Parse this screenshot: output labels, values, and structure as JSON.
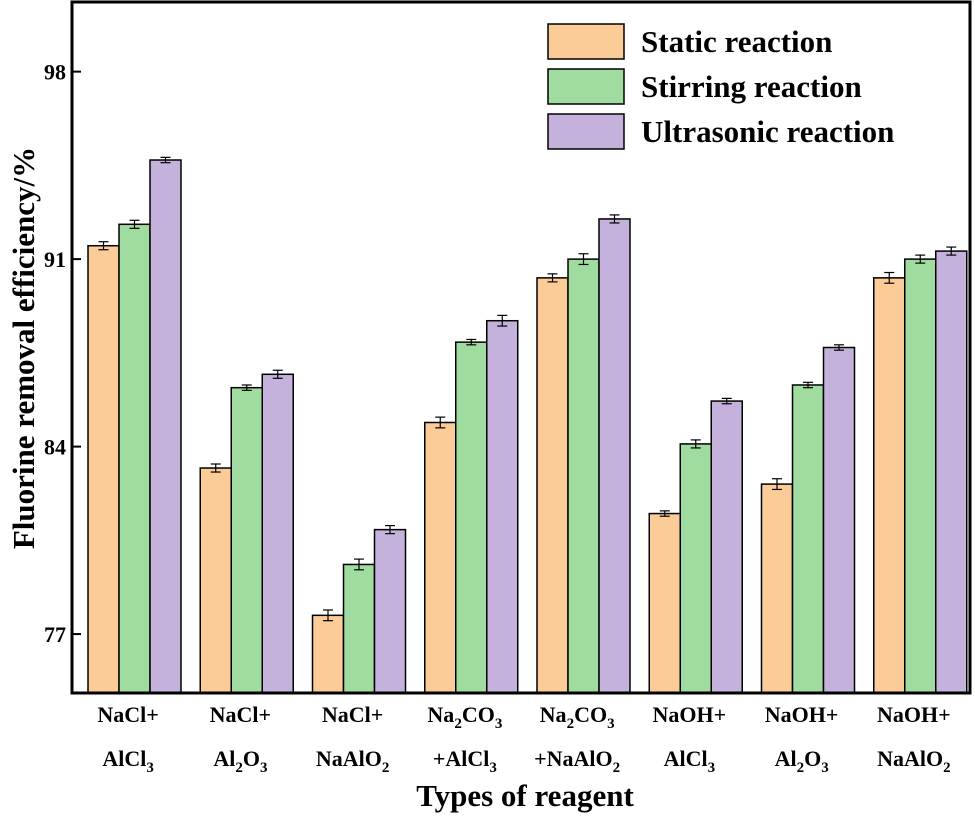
{
  "chart_data": {
    "type": "bar",
    "title": "",
    "xlabel": "Types of reagent",
    "ylabel": "Fluorine removal efficiency/%",
    "ylim": [
      74.8,
      100.6
    ],
    "yticks": [
      "77",
      "84",
      "91",
      "98"
    ],
    "categories": [
      {
        "line1": [
          {
            "t": "NaCl+"
          }
        ],
        "line2": [
          {
            "t": "AlCl"
          },
          {
            "t": "3",
            "sub": true
          }
        ]
      },
      {
        "line1": [
          {
            "t": "NaCl+"
          }
        ],
        "line2": [
          {
            "t": "Al"
          },
          {
            "t": "2",
            "sub": true
          },
          {
            "t": "O"
          },
          {
            "t": "3",
            "sub": true
          }
        ]
      },
      {
        "line1": [
          {
            "t": "NaCl+"
          }
        ],
        "line2": [
          {
            "t": "NaAlO"
          },
          {
            "t": "2",
            "sub": true
          }
        ]
      },
      {
        "line1": [
          {
            "t": "Na"
          },
          {
            "t": "2",
            "sub": true
          },
          {
            "t": "CO"
          },
          {
            "t": "3",
            "sub": true
          }
        ],
        "line2": [
          {
            "t": "+AlCl"
          },
          {
            "t": "3",
            "sub": true
          }
        ]
      },
      {
        "line1": [
          {
            "t": "Na"
          },
          {
            "t": "2",
            "sub": true
          },
          {
            "t": "CO"
          },
          {
            "t": "3",
            "sub": true
          }
        ],
        "line2": [
          {
            "t": "+NaAlO"
          },
          {
            "t": "2",
            "sub": true
          }
        ]
      },
      {
        "line1": [
          {
            "t": "NaOH+"
          }
        ],
        "line2": [
          {
            "t": "AlCl"
          },
          {
            "t": "3",
            "sub": true
          }
        ]
      },
      {
        "line1": [
          {
            "t": "NaOH+"
          }
        ],
        "line2": [
          {
            "t": "Al"
          },
          {
            "t": "2",
            "sub": true
          },
          {
            "t": "O"
          },
          {
            "t": "3",
            "sub": true
          }
        ]
      },
      {
        "line1": [
          {
            "t": "NaOH+"
          }
        ],
        "line2": [
          {
            "t": "NaAlO"
          },
          {
            "t": "2",
            "sub": true
          }
        ]
      }
    ],
    "series": [
      {
        "name": "Static reaction",
        "color": "#FBCB98",
        "values": [
          91.5,
          83.2,
          77.7,
          84.9,
          90.3,
          81.5,
          82.6,
          90.3
        ],
        "errors": [
          0.15,
          0.15,
          0.2,
          0.2,
          0.15,
          0.1,
          0.2,
          0.2
        ]
      },
      {
        "name": "Stirring reaction",
        "color": "#A0DBA0",
        "values": [
          92.3,
          86.2,
          79.6,
          87.9,
          91.0,
          84.1,
          86.3,
          91.0
        ],
        "errors": [
          0.15,
          0.1,
          0.2,
          0.1,
          0.2,
          0.15,
          0.1,
          0.15
        ]
      },
      {
        "name": "Ultrasonic reaction",
        "color": "#C4B2DC",
        "values": [
          94.7,
          86.7,
          80.9,
          88.7,
          92.5,
          85.7,
          87.7,
          91.3
        ],
        "errors": [
          0.1,
          0.15,
          0.15,
          0.2,
          0.15,
          0.1,
          0.1,
          0.15
        ]
      }
    ],
    "legend_position": "top-right",
    "grid": false
  }
}
